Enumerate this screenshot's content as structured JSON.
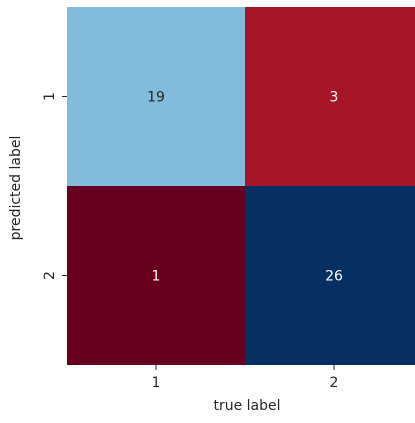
{
  "chart_data": {
    "type": "heatmap",
    "title": "",
    "xlabel": "true label",
    "ylabel": "predicted label",
    "x_categories": [
      "1",
      "2"
    ],
    "y_categories": [
      "1",
      "2"
    ],
    "values": [
      [
        19,
        3
      ],
      [
        1,
        26
      ]
    ],
    "colormap": "RdBu",
    "colorbar": false,
    "grid": false,
    "colors": {
      "cell_1_1": "#82bbdb",
      "cell_1_2": "#a51427",
      "cell_2_1": "#67001f",
      "cell_2_2": "#053061",
      "text_light_bg": "#262626",
      "text_dark_bg": "#ffffff",
      "axis_text": "#262626"
    }
  }
}
